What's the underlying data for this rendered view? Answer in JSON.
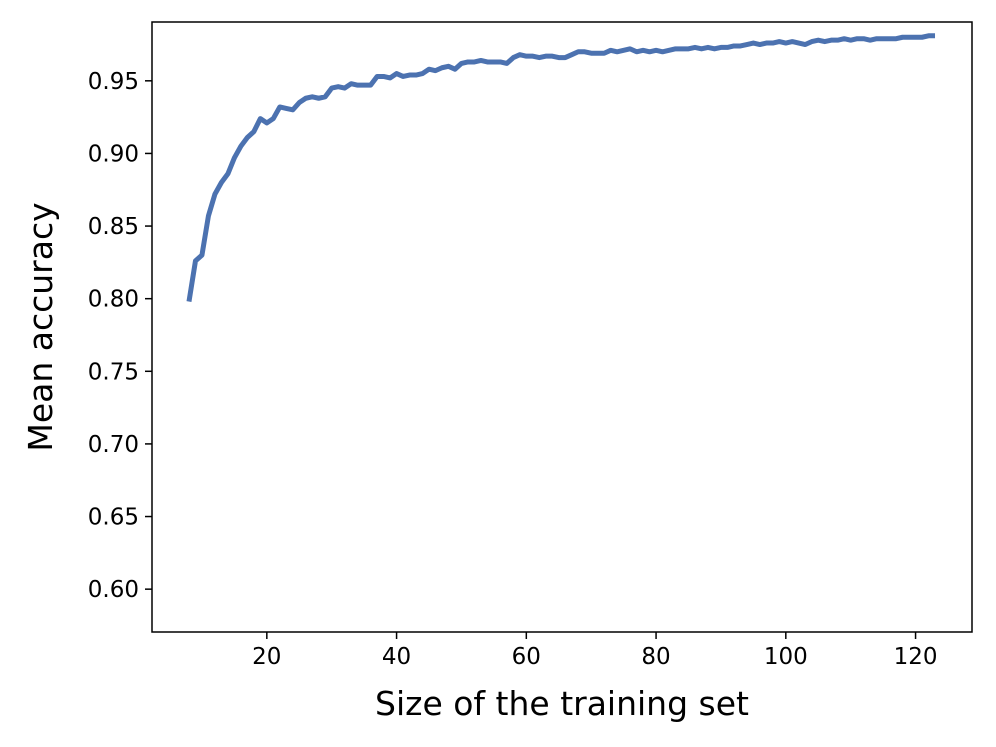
{
  "chart_data": {
    "type": "line",
    "title": "",
    "xlabel": "Size of the training set",
    "ylabel": "Mean accuracy",
    "xlim": [
      2.3,
      128.7
    ],
    "ylim": [
      0.5705,
      0.9905
    ],
    "xticks": [
      20,
      40,
      60,
      80,
      100,
      120
    ],
    "yticks": [
      0.6,
      0.65,
      0.7,
      0.75,
      0.8,
      0.85,
      0.9,
      0.95
    ],
    "xtick_labels": [
      "20",
      "40",
      "60",
      "80",
      "100",
      "120"
    ],
    "ytick_labels": [
      "0.60",
      "0.65",
      "0.70",
      "0.75",
      "0.80",
      "0.85",
      "0.90",
      "0.95"
    ],
    "grid": false,
    "legend": "none",
    "series": [
      {
        "color": "#4c72b0",
        "x": [
          8,
          9,
          10,
          11,
          12,
          13,
          14,
          15,
          16,
          17,
          18,
          19,
          20,
          21,
          22,
          23,
          24,
          25,
          26,
          27,
          28,
          29,
          30,
          31,
          32,
          33,
          34,
          35,
          36,
          37,
          38,
          39,
          40,
          41,
          42,
          43,
          44,
          45,
          46,
          47,
          48,
          49,
          50,
          51,
          52,
          53,
          54,
          55,
          56,
          57,
          58,
          59,
          60,
          61,
          62,
          63,
          64,
          65,
          66,
          67,
          68,
          69,
          70,
          71,
          72,
          73,
          74,
          75,
          76,
          77,
          78,
          79,
          80,
          81,
          82,
          83,
          84,
          85,
          86,
          87,
          88,
          89,
          90,
          91,
          92,
          93,
          94,
          95,
          96,
          97,
          98,
          99,
          100,
          101,
          102,
          103,
          104,
          105,
          106,
          107,
          108,
          109,
          110,
          111,
          112,
          113,
          114,
          115,
          116,
          117,
          118,
          119,
          120,
          121,
          122,
          123
        ],
        "y": [
          0.798,
          0.826,
          0.83,
          0.857,
          0.872,
          0.88,
          0.886,
          0.897,
          0.905,
          0.911,
          0.915,
          0.924,
          0.921,
          0.924,
          0.932,
          0.931,
          0.93,
          0.935,
          0.938,
          0.939,
          0.938,
          0.939,
          0.945,
          0.946,
          0.945,
          0.948,
          0.947,
          0.947,
          0.947,
          0.953,
          0.953,
          0.952,
          0.955,
          0.953,
          0.954,
          0.954,
          0.955,
          0.958,
          0.957,
          0.959,
          0.96,
          0.958,
          0.962,
          0.963,
          0.963,
          0.964,
          0.963,
          0.963,
          0.963,
          0.962,
          0.966,
          0.968,
          0.967,
          0.967,
          0.966,
          0.967,
          0.967,
          0.966,
          0.966,
          0.968,
          0.97,
          0.97,
          0.969,
          0.969,
          0.969,
          0.971,
          0.97,
          0.971,
          0.972,
          0.97,
          0.971,
          0.97,
          0.971,
          0.97,
          0.971,
          0.972,
          0.972,
          0.972,
          0.973,
          0.972,
          0.973,
          0.972,
          0.973,
          0.973,
          0.974,
          0.974,
          0.975,
          0.976,
          0.975,
          0.976,
          0.976,
          0.977,
          0.976,
          0.977,
          0.976,
          0.975,
          0.977,
          0.978,
          0.977,
          0.978,
          0.978,
          0.979,
          0.978,
          0.979,
          0.979,
          0.978,
          0.979,
          0.979,
          0.979,
          0.979,
          0.98,
          0.98,
          0.98,
          0.98,
          0.981,
          0.981
        ]
      }
    ]
  }
}
